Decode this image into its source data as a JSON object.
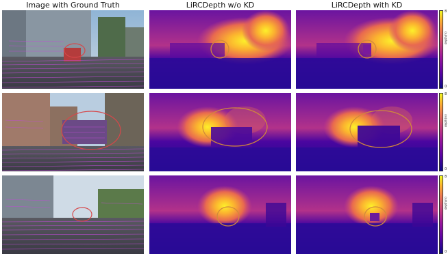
{
  "columns": [
    {
      "title": "Image with Ground Truth"
    },
    {
      "title": "LiRCDepth w/o KD"
    },
    {
      "title": "LiRCDepth with KD"
    }
  ],
  "colorbar": {
    "label": "depth(m)",
    "max_tick": "8",
    "min_tick": "0"
  },
  "colors": {
    "ellipse": "#d18a3a",
    "lidar_points": "#c04bd6"
  }
}
